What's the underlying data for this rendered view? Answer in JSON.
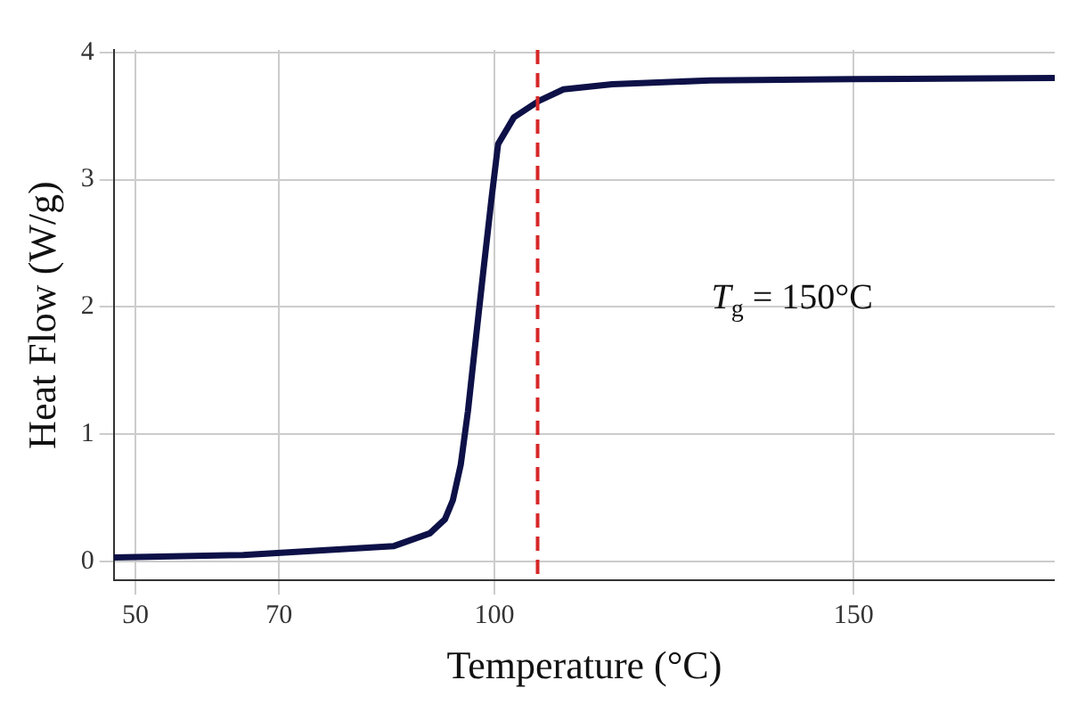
{
  "chart_data": {
    "type": "line",
    "xlabel": "Temperature (°C)",
    "ylabel": "Heat Flow (W/g)",
    "xlim": [
      47,
      178
    ],
    "xticks": [
      50,
      70,
      100,
      150
    ],
    "ylim": [
      -0.15,
      4.02
    ],
    "yticks": [
      0,
      1,
      2,
      3,
      4
    ],
    "grid": true,
    "legend": false,
    "marker": "none",
    "line_style": "solid",
    "series": [
      {
        "color": "#0d1147",
        "x": [
          47,
          65,
          86,
          91,
          93.1,
          94.2,
          95.3,
          96.3,
          97.4,
          98.5,
          99.6,
          100.5,
          102.7,
          106.2,
          109.6,
          116.4,
          130,
          150,
          178
        ],
        "values": [
          0.03,
          0.05,
          0.12,
          0.22,
          0.33,
          0.48,
          0.76,
          1.18,
          1.75,
          2.31,
          2.86,
          3.28,
          3.49,
          3.62,
          3.71,
          3.75,
          3.78,
          3.79,
          3.8
        ]
      }
    ],
    "ref_lines": [
      {
        "axis": "x",
        "value": 106,
        "color": "#d62728",
        "line_style": "dashed"
      }
    ],
    "annotations": [
      "T$_{g}$ = 150°C"
    ]
  }
}
